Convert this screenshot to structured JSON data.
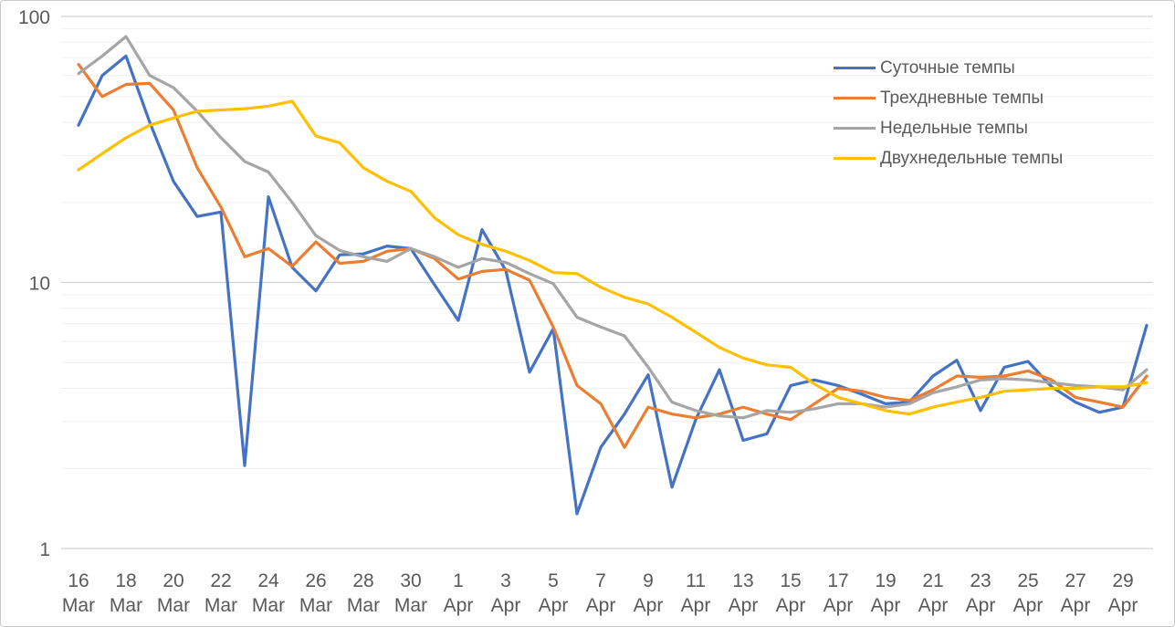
{
  "chart_data": {
    "type": "line",
    "title": "",
    "xlabel": "",
    "ylabel": "",
    "y_scale": "log",
    "grid": true,
    "legend_position": "top-right",
    "y_ticks": [
      {
        "label": "100",
        "value": 100
      },
      {
        "label": "10",
        "value": 10
      },
      {
        "label": "1",
        "value": 1
      }
    ],
    "y_minor_gridlines": [
      2,
      3,
      4,
      5,
      6,
      7,
      8,
      9,
      20,
      30,
      40,
      50,
      60,
      70,
      80,
      90
    ],
    "ylim": [
      1,
      100
    ],
    "x_tick_every": 2,
    "x": [
      "16 Mar",
      "17 Mar",
      "18 Mar",
      "19 Mar",
      "20 Mar",
      "21 Mar",
      "22 Mar",
      "23 Mar",
      "24 Mar",
      "25 Mar",
      "26 Mar",
      "27 Mar",
      "28 Mar",
      "29 Mar",
      "30 Mar",
      "31 Mar",
      "1 Apr",
      "2 Apr",
      "3 Apr",
      "4 Apr",
      "5 Apr",
      "6 Apr",
      "7 Apr",
      "8 Apr",
      "9 Apr",
      "10 Apr",
      "11 Apr",
      "12 Apr",
      "13 Apr",
      "14 Apr",
      "15 Apr",
      "16 Apr",
      "17 Apr",
      "18 Apr",
      "19 Apr",
      "20 Apr",
      "21 Apr",
      "22 Apr",
      "23 Apr",
      "24 Apr",
      "25 Apr",
      "26 Apr",
      "27 Apr",
      "28 Apr",
      "29 Apr",
      "30 Apr"
    ],
    "series": [
      {
        "name": "Суточные темпы",
        "color": "#4472C4",
        "values": [
          39,
          60,
          71,
          40,
          24,
          17.7,
          18.4,
          2.05,
          21,
          11.4,
          9.3,
          12.7,
          12.8,
          13.7,
          13.4,
          9.8,
          7.2,
          15.8,
          11.1,
          4.6,
          6.7,
          1.35,
          2.4,
          3.2,
          4.5,
          1.7,
          3.05,
          4.7,
          2.55,
          2.7,
          4.1,
          4.3,
          4.1,
          3.8,
          3.5,
          3.55,
          4.45,
          5.1,
          3.3,
          4.8,
          5.05,
          4.05,
          3.55,
          3.25,
          3.4,
          6.9
        ]
      },
      {
        "name": "Трехдневные темпы",
        "color": "#ED7D31",
        "values": [
          66,
          50,
          55.5,
          56,
          44.5,
          27,
          19.2,
          12.5,
          13.4,
          11.5,
          14.2,
          11.8,
          12,
          13.1,
          13.4,
          12.3,
          10.3,
          11,
          11.2,
          10.2,
          6.8,
          4.1,
          3.5,
          2.4,
          3.4,
          3.2,
          3.1,
          3.2,
          3.4,
          3.2,
          3.05,
          3.5,
          4,
          3.9,
          3.7,
          3.6,
          3.95,
          4.45,
          4.4,
          4.45,
          4.65,
          4.3,
          3.7,
          3.55,
          3.4,
          4.45
        ]
      },
      {
        "name": "Недельные темпы",
        "color": "#A5A5A5",
        "values": [
          61,
          71,
          84,
          60,
          54,
          44,
          35,
          28.5,
          26,
          20,
          15,
          13.2,
          12.5,
          12,
          13.4,
          12.5,
          11.4,
          12.3,
          11.9,
          10.8,
          9.9,
          7.4,
          6.8,
          6.3,
          4.8,
          3.55,
          3.3,
          3.15,
          3.1,
          3.3,
          3.25,
          3.35,
          3.5,
          3.5,
          3.4,
          3.5,
          3.85,
          4.05,
          4.3,
          4.35,
          4.3,
          4.2,
          4.1,
          4.05,
          3.95,
          4.7
        ]
      },
      {
        "name": "Двухнедельные темпы",
        "color": "#FFC000",
        "values": [
          26.5,
          30.5,
          35,
          39,
          41.5,
          44,
          44.5,
          45,
          46,
          48,
          35.5,
          33.5,
          27,
          24,
          22,
          17.5,
          15.1,
          13.9,
          13.1,
          12.1,
          10.9,
          10.8,
          9.6,
          8.8,
          8.3,
          7.4,
          6.5,
          5.7,
          5.2,
          4.9,
          4.8,
          4.15,
          3.7,
          3.5,
          3.3,
          3.2,
          3.4,
          3.55,
          3.7,
          3.9,
          3.95,
          4,
          4,
          4.05,
          4.05,
          4.2
        ]
      }
    ]
  },
  "colors": {
    "axis_text": "#595959",
    "major_grid": "#d2d2d2",
    "minor_grid": "#f0f0f0",
    "border": "#c9c9c9",
    "background": "#ffffff"
  }
}
